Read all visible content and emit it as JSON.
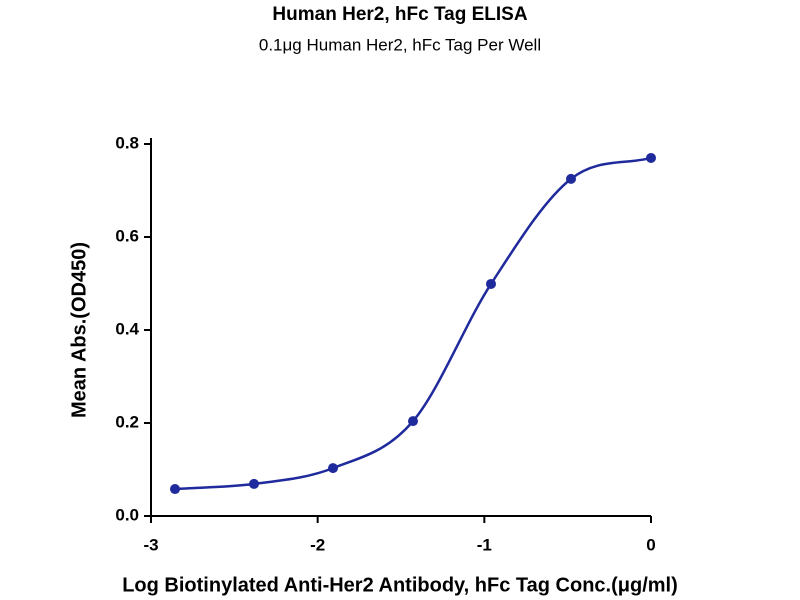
{
  "chart_data": {
    "type": "scatter",
    "title": "Human Her2, hFc Tag ELISA",
    "subtitle": "0.1μg Human Her2, hFc Tag Per Well",
    "x_label": "Log Biotinylated Anti-Her2 Antibody, hFc Tag Conc.(μg/ml)",
    "y_label": "Mean Abs.(OD450)",
    "x": [
      -2.856,
      -2.382,
      -1.908,
      -1.428,
      -0.96,
      -0.48,
      0
    ],
    "values": [
      0.058,
      0.069,
      0.103,
      0.204,
      0.499,
      0.725,
      0.77
    ],
    "color": "#1f2a9c",
    "xlim": [
      -3,
      0
    ],
    "xticks": [
      -3,
      -2,
      -1,
      0
    ],
    "ylim": [
      0,
      0.8
    ],
    "yticks": [
      {
        "value": 0,
        "label": "0.0"
      },
      0.2,
      0.4,
      0.6,
      0.8
    ],
    "grid": false
  }
}
